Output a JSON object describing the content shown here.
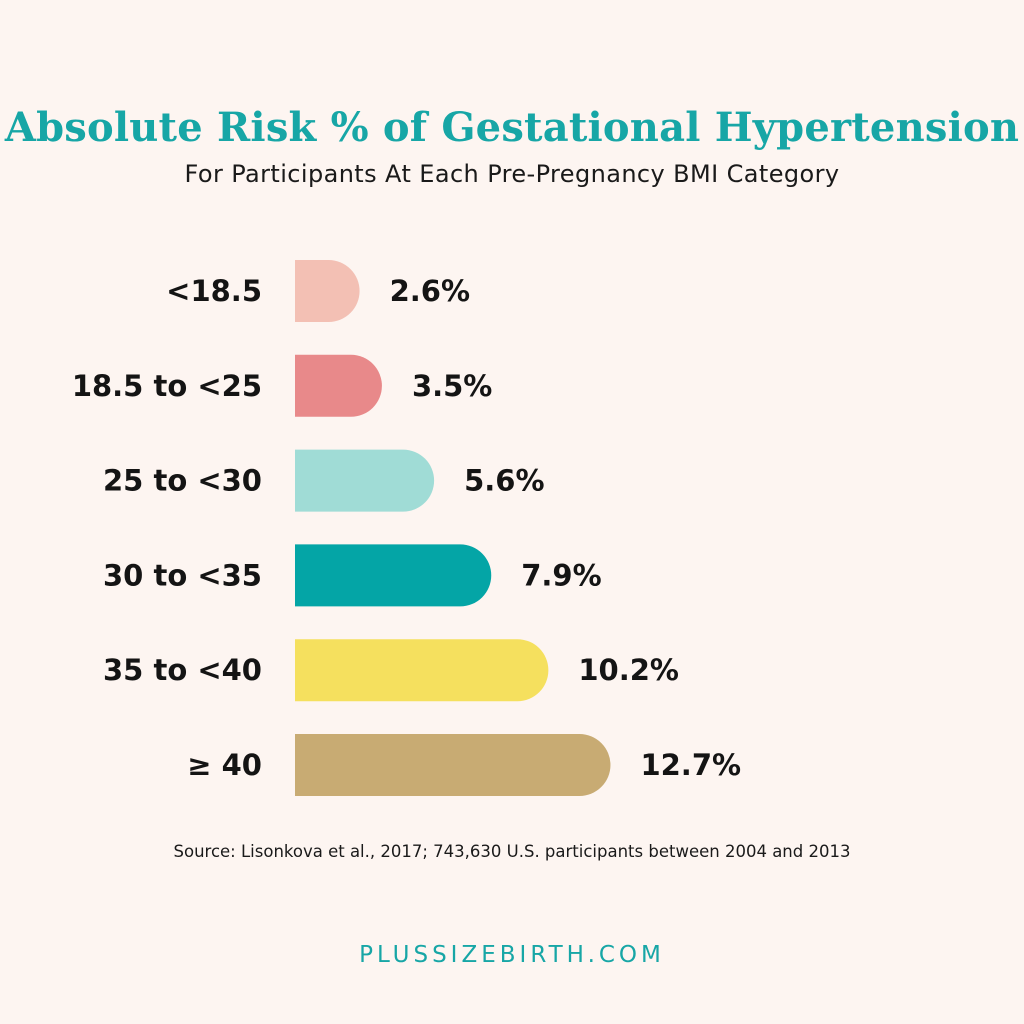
{
  "header": {
    "title": "Absolute Risk % of Gestational Hypertension",
    "subtitle": "For Participants At Each Pre-Pregnancy BMI Category"
  },
  "chart_data": {
    "type": "bar",
    "orientation": "horizontal",
    "categories": [
      "<18.5",
      "18.5 to <25",
      "25 to <30",
      "30 to <35",
      "35 to <40",
      "≥ 40"
    ],
    "values": [
      2.6,
      3.5,
      5.6,
      7.9,
      10.2,
      12.7
    ],
    "value_labels": [
      "2.6%",
      "3.5%",
      "5.6%",
      "7.9%",
      "10.2%",
      "12.7%"
    ],
    "colors": [
      "#f3c0b4",
      "#e8898a",
      "#a0dcd6",
      "#04a5a6",
      "#f5e05e",
      "#c8ab73"
    ],
    "title": "Absolute Risk % of Gestational Hypertension",
    "subtitle": "For Participants At Each Pre-Pregnancy BMI Category",
    "grid": false
  },
  "footer": {
    "source": "Source: Lisonkova et al., 2017; 743,630 U.S. participants between 2004 and 2013",
    "site": "PLUSSIZEBIRTH.COM"
  }
}
